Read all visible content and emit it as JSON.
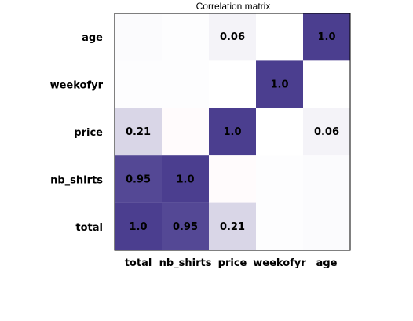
{
  "chart_data": {
    "type": "heatmap",
    "title": "Correlation matrix",
    "x_labels": [
      "total",
      "nb_shirts",
      "price",
      "weekofyr",
      "age"
    ],
    "y_labels": [
      "age",
      "weekofyr",
      "price",
      "nb_shirts",
      "total"
    ],
    "values": [
      [
        0.02,
        0.01,
        0.06,
        0.0,
        1.0
      ],
      [
        0.01,
        0.01,
        0.0,
        1.0,
        0.0
      ],
      [
        0.21,
        -0.02,
        1.0,
        0.0,
        0.06
      ],
      [
        0.95,
        1.0,
        -0.02,
        0.01,
        0.02
      ],
      [
        1.0,
        0.95,
        0.21,
        0.01,
        0.02
      ]
    ],
    "display": [
      [
        "",
        "",
        "0.06",
        "",
        "1.0"
      ],
      [
        "",
        "",
        "",
        "1.0",
        ""
      ],
      [
        "0.21",
        "",
        "1.0",
        "",
        "0.06"
      ],
      [
        "0.95",
        "1.0",
        "",
        "",
        ""
      ],
      [
        "1.0",
        "0.95",
        "0.21",
        "",
        ""
      ]
    ],
    "colors": {
      "positive": "#4b3e8f",
      "negative": "#ff4b6e",
      "neutral": "#ffffff"
    },
    "grid": false
  }
}
